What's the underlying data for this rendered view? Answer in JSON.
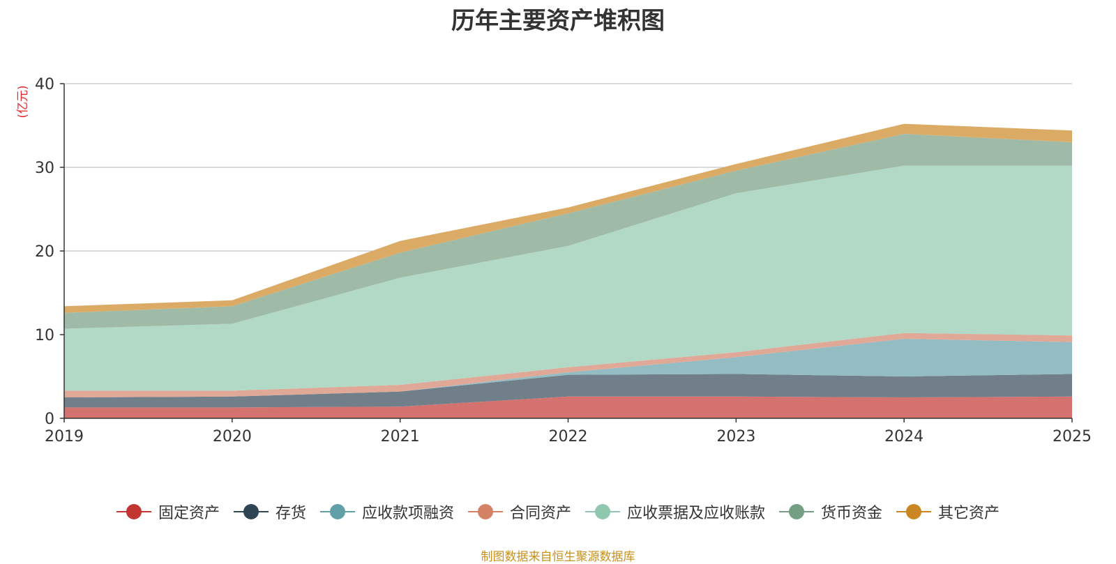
{
  "chart_data": {
    "type": "area",
    "stacked": true,
    "title": "历年主要资产堆积图",
    "ylabel": "(亿元)",
    "xlabel": "",
    "ylim": [
      0,
      40
    ],
    "yticks": [
      0,
      10,
      20,
      30,
      40
    ],
    "x": [
      "2019",
      "2020",
      "2021",
      "2022",
      "2023",
      "2024",
      "2025"
    ],
    "grid": true,
    "legend_position": "bottom",
    "series": [
      {
        "name": "固定资产",
        "color": "#c23531",
        "fill": "#d4726f",
        "values": [
          1.3,
          1.3,
          1.4,
          2.6,
          2.6,
          2.5,
          2.6
        ]
      },
      {
        "name": "存货",
        "color": "#2f4554",
        "fill": "#707f8a",
        "values": [
          1.2,
          1.3,
          1.8,
          2.6,
          2.7,
          2.5,
          2.7
        ]
      },
      {
        "name": "应收款项融资",
        "color": "#61a0a8",
        "fill": "#93bcc3",
        "values": [
          0.0,
          0.0,
          0.0,
          0.3,
          2.0,
          4.5,
          3.8
        ]
      },
      {
        "name": "合同资产",
        "color": "#d48265",
        "fill": "#e0a897",
        "values": [
          0.8,
          0.7,
          0.8,
          0.6,
          0.6,
          0.7,
          0.8
        ]
      },
      {
        "name": "应收票据及应收账款",
        "color": "#91c7ae",
        "fill": "#b2d9c6",
        "values": [
          7.4,
          8.0,
          12.8,
          14.5,
          19.0,
          20.0,
          20.3
        ]
      },
      {
        "name": "货币资金",
        "color": "#749f83",
        "fill": "#9fbba7",
        "values": [
          1.9,
          2.1,
          3.0,
          3.9,
          2.7,
          3.8,
          2.8
        ]
      },
      {
        "name": "其它资产",
        "color": "#ca8622",
        "fill": "#dbaa65",
        "values": [
          0.8,
          0.7,
          1.4,
          0.7,
          0.8,
          1.2,
          1.4
        ]
      }
    ]
  },
  "source_note": "制图数据来自恒生聚源数据库"
}
